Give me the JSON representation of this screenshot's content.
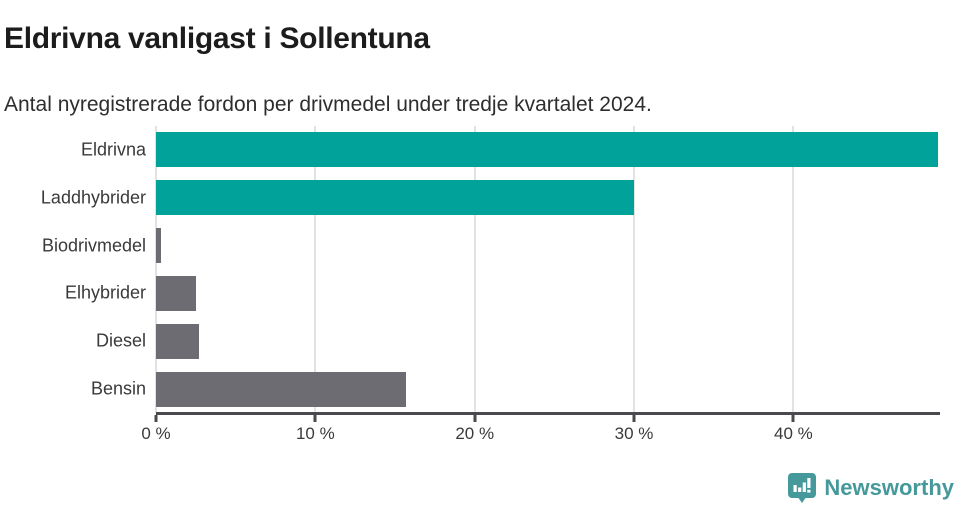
{
  "chart_data": {
    "type": "bar",
    "orientation": "horizontal",
    "title": "Eldrivna vanligast i Sollentuna",
    "subtitle": "Antal nyregistrerade fordon per drivmedel under tredje kvartalet 2024.",
    "categories": [
      "Eldrivna",
      "Laddhybrider",
      "Biodrivmedel",
      "Elhybrider",
      "Diesel",
      "Bensin"
    ],
    "values": [
      49.1,
      30.0,
      0.3,
      2.5,
      2.7,
      15.7
    ],
    "value_unit": "%",
    "xlim": [
      0,
      49.2
    ],
    "xticks": [
      {
        "value": 0,
        "label": "0 %"
      },
      {
        "value": 10,
        "label": "10 %"
      },
      {
        "value": 20,
        "label": "20 %"
      },
      {
        "value": 30,
        "label": "30 %"
      },
      {
        "value": 40,
        "label": "40 %"
      }
    ],
    "bar_colors": [
      "#00a29a",
      "#00a29a",
      "#6c6c72",
      "#6c6c72",
      "#6c6c72",
      "#6c6c72"
    ],
    "grid": "vertical",
    "legend": "none"
  },
  "colors": {
    "accent_teal": "#00a29a",
    "bar_gray": "#6c6c72",
    "gridline": "#e2e2e2",
    "axis": "#4a4a4e",
    "title_text": "#1c1c1c",
    "body_text": "#3a3a3a",
    "brand_teal": "#45999b"
  },
  "branding": {
    "logo_text": "Newsworthy",
    "logo_icon": "bar-chart-speech-bubble-icon"
  }
}
